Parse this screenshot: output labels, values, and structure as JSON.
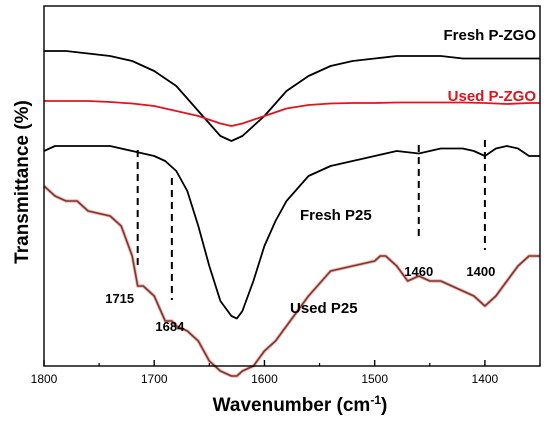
{
  "chart_data": {
    "type": "line",
    "title": "",
    "xlabel": "Wavenumber (cm",
    "xlabel_sup": "-1",
    "xlabel_close": ")",
    "ylabel": "Transmittance (%)",
    "xlim": [
      1800,
      1350
    ],
    "x_reversed": true,
    "y_ticks_shown": false,
    "x_ticks": [
      1800,
      1700,
      1600,
      1500,
      1400
    ],
    "x_tick_labels": [
      "1800",
      "1700",
      "1600",
      "1500",
      "1400"
    ],
    "grid": false,
    "legend": "none",
    "y_units": "relative (arbitrary, offset curves)",
    "series": [
      {
        "name": "Fresh P-ZGO",
        "color": "#000000",
        "x": [
          1800,
          1780,
          1760,
          1740,
          1720,
          1700,
          1680,
          1660,
          1640,
          1630,
          1620,
          1600,
          1580,
          1560,
          1540,
          1520,
          1500,
          1480,
          1460,
          1440,
          1420,
          1400,
          1380,
          1360,
          1350
        ],
        "y": [
          50,
          50,
          49.5,
          49,
          48,
          46,
          43,
          38,
          33,
          32,
          33,
          37,
          42,
          45,
          47,
          48,
          48.5,
          49,
          49,
          49,
          48.5,
          48.5,
          48.5,
          48.5,
          48.5
        ]
      },
      {
        "name": "Used P-ZGO",
        "color": "#e0141e",
        "x": [
          1800,
          1780,
          1760,
          1740,
          1720,
          1700,
          1680,
          1660,
          1640,
          1630,
          1620,
          1600,
          1580,
          1560,
          1540,
          1520,
          1500,
          1480,
          1460,
          1440,
          1420,
          1400,
          1380,
          1360,
          1350
        ],
        "y": [
          40,
          40,
          40,
          39.8,
          39.5,
          39,
          38,
          37,
          35.5,
          35,
          35.5,
          37,
          38.5,
          39.2,
          39.5,
          39.6,
          39.6,
          39.7,
          39.7,
          39.7,
          39.7,
          39.6,
          39.4,
          39.6,
          39.6
        ]
      },
      {
        "name": "Fresh P25",
        "color": "#000000",
        "x": [
          1800,
          1790,
          1780,
          1760,
          1740,
          1720,
          1710,
          1700,
          1690,
          1680,
          1670,
          1660,
          1650,
          1640,
          1630,
          1625,
          1620,
          1610,
          1600,
          1590,
          1580,
          1560,
          1540,
          1520,
          1500,
          1480,
          1460,
          1440,
          1420,
          1410,
          1400,
          1390,
          1380,
          1370,
          1360,
          1350
        ],
        "y": [
          30,
          31,
          31,
          31,
          31,
          30,
          29.5,
          29,
          28,
          26,
          22,
          15,
          7,
          0,
          -3,
          -3.5,
          -2,
          4,
          11,
          16,
          20,
          25,
          27,
          28,
          29,
          30,
          29.5,
          30.5,
          30.5,
          30,
          29,
          30.5,
          31,
          30.5,
          29,
          29
        ]
      },
      {
        "name": "Used P25",
        "color": "#e0141e",
        "x": [
          1800,
          1790,
          1780,
          1770,
          1760,
          1740,
          1730,
          1720,
          1715,
          1710,
          1700,
          1690,
          1684,
          1680,
          1670,
          1660,
          1650,
          1640,
          1630,
          1625,
          1620,
          1610,
          1600,
          1590,
          1580,
          1570,
          1560,
          1540,
          1520,
          1500,
          1495,
          1490,
          1480,
          1470,
          1460,
          1450,
          1440,
          1430,
          1420,
          1410,
          1400,
          1395,
          1390,
          1380,
          1370,
          1360,
          1350
        ],
        "y": [
          23,
          21,
          20,
          20,
          18,
          17,
          15,
          9,
          3,
          3,
          1,
          -4,
          -4,
          -5,
          -6,
          -8,
          -12,
          -14,
          -15,
          -15,
          -14,
          -13,
          -10,
          -8,
          -5,
          -2,
          1,
          6,
          7,
          8,
          9,
          9,
          7,
          4,
          5,
          4,
          4,
          3,
          2,
          1,
          -1,
          0,
          1,
          4,
          7,
          9,
          9
        ]
      }
    ],
    "annotations": {
      "series_labels": [
        {
          "text": "Fresh P-ZGO",
          "color": "#000000"
        },
        {
          "text": "Used P-ZGO",
          "color": "#e0141e"
        },
        {
          "text": "Fresh P25",
          "color": "#000000"
        },
        {
          "text": "Used P25",
          "color": "#000000"
        }
      ],
      "peaks": [
        {
          "wavenumber": 1715,
          "label": "1715"
        },
        {
          "wavenumber": 1684,
          "label": "1684"
        },
        {
          "wavenumber": 1460,
          "label": "1460"
        },
        {
          "wavenumber": 1400,
          "label": "1400"
        }
      ]
    }
  }
}
